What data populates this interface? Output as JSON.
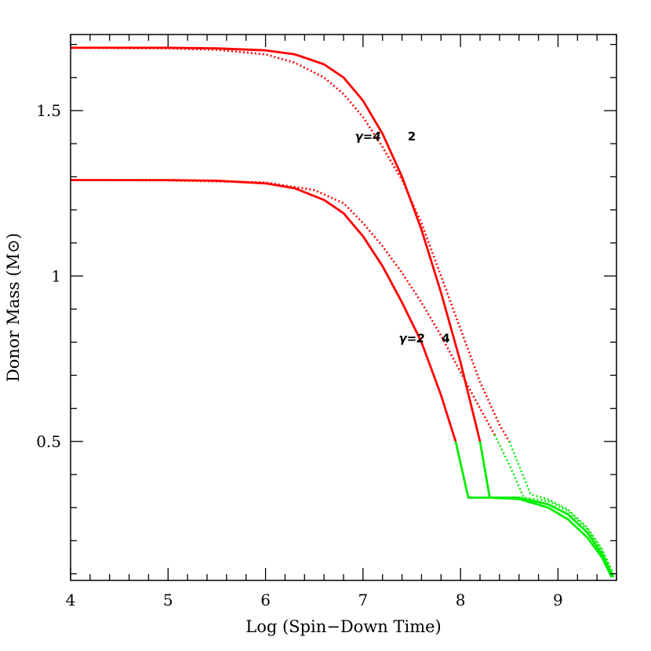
{
  "chart_data": {
    "type": "line",
    "title": "",
    "xlabel": "Log (Spin−Down Time)",
    "ylabel": "Donor Mass (M⊙)",
    "xlim": [
      4,
      9.6
    ],
    "ylim": [
      0.08,
      1.73
    ],
    "xticks": [
      4,
      5,
      6,
      7,
      8,
      9
    ],
    "xtick_labels": [
      "4",
      "5",
      "6",
      "7",
      "8",
      "9"
    ],
    "yticks": [
      0.5,
      1,
      1.5
    ],
    "ytick_labels": [
      "0.5",
      "1",
      "1.5"
    ],
    "grid": false,
    "colors": {
      "red": "#ff0000",
      "green": "#00ee00"
    },
    "series": [
      {
        "style": "solid",
        "color": "#ff0000",
        "x": [
          4.0,
          5.0,
          5.5,
          6.0,
          6.3,
          6.6,
          6.8,
          7.0,
          7.2,
          7.4,
          7.6,
          7.8,
          7.95
        ],
        "y": [
          1.29,
          1.29,
          1.288,
          1.28,
          1.265,
          1.23,
          1.19,
          1.12,
          1.03,
          0.92,
          0.8,
          0.64,
          0.5
        ]
      },
      {
        "style": "solid",
        "color": "#00ee00",
        "x": [
          7.95,
          8.08,
          8.3,
          8.6,
          8.9,
          9.1,
          9.3,
          9.45,
          9.55
        ],
        "y": [
          0.5,
          0.33,
          0.33,
          0.326,
          0.3,
          0.265,
          0.21,
          0.15,
          0.09
        ]
      },
      {
        "style": "dotted",
        "color": "#ff0000",
        "x": [
          4.0,
          5.0,
          6.0,
          6.5,
          6.8,
          7.0,
          7.2,
          7.4,
          7.6,
          7.8,
          8.0,
          8.2,
          8.35
        ],
        "y": [
          1.29,
          1.289,
          1.283,
          1.26,
          1.22,
          1.16,
          1.09,
          1.01,
          0.92,
          0.82,
          0.71,
          0.6,
          0.52
        ]
      },
      {
        "style": "dotted",
        "color": "#00ee00",
        "x": [
          8.35,
          8.5,
          8.65,
          8.9,
          9.1,
          9.3,
          9.45,
          9.55
        ],
        "y": [
          0.52,
          0.43,
          0.33,
          0.32,
          0.29,
          0.235,
          0.17,
          0.1
        ]
      },
      {
        "style": "solid",
        "color": "#ff0000",
        "x": [
          4.0,
          5.0,
          5.5,
          6.0,
          6.3,
          6.6,
          6.8,
          7.0,
          7.2,
          7.4,
          7.6,
          7.8,
          8.0,
          8.2
        ],
        "y": [
          1.69,
          1.69,
          1.688,
          1.682,
          1.67,
          1.64,
          1.6,
          1.53,
          1.43,
          1.3,
          1.14,
          0.95,
          0.74,
          0.5
        ]
      },
      {
        "style": "solid",
        "color": "#00ee00",
        "x": [
          8.2,
          8.3,
          8.6,
          8.9,
          9.1,
          9.3,
          9.45,
          9.57
        ],
        "y": [
          0.5,
          0.33,
          0.33,
          0.31,
          0.28,
          0.225,
          0.16,
          0.09
        ]
      },
      {
        "style": "dotted",
        "color": "#ff0000",
        "x": [
          4.0,
          5.0,
          5.5,
          6.0,
          6.3,
          6.6,
          6.8,
          7.0,
          7.2,
          7.4,
          7.6,
          7.8,
          8.0,
          8.2,
          8.4,
          8.5
        ],
        "y": [
          1.69,
          1.688,
          1.684,
          1.67,
          1.645,
          1.6,
          1.55,
          1.48,
          1.39,
          1.29,
          1.16,
          1.0,
          0.84,
          0.68,
          0.55,
          0.5
        ]
      },
      {
        "style": "dotted",
        "color": "#00ee00",
        "x": [
          8.5,
          8.72,
          8.9,
          9.1,
          9.3,
          9.45,
          9.57
        ],
        "y": [
          0.5,
          0.34,
          0.325,
          0.295,
          0.24,
          0.175,
          0.1
        ]
      }
    ],
    "annotations": [
      {
        "text": "γ=4",
        "x": 7.05,
        "y": 1.41,
        "italic": true
      },
      {
        "text": "2",
        "x": 7.5,
        "y": 1.41,
        "italic": false
      },
      {
        "text": "γ=2",
        "x": 7.5,
        "y": 0.8,
        "italic": true
      },
      {
        "text": "4",
        "x": 7.85,
        "y": 0.8,
        "italic": false
      }
    ]
  }
}
